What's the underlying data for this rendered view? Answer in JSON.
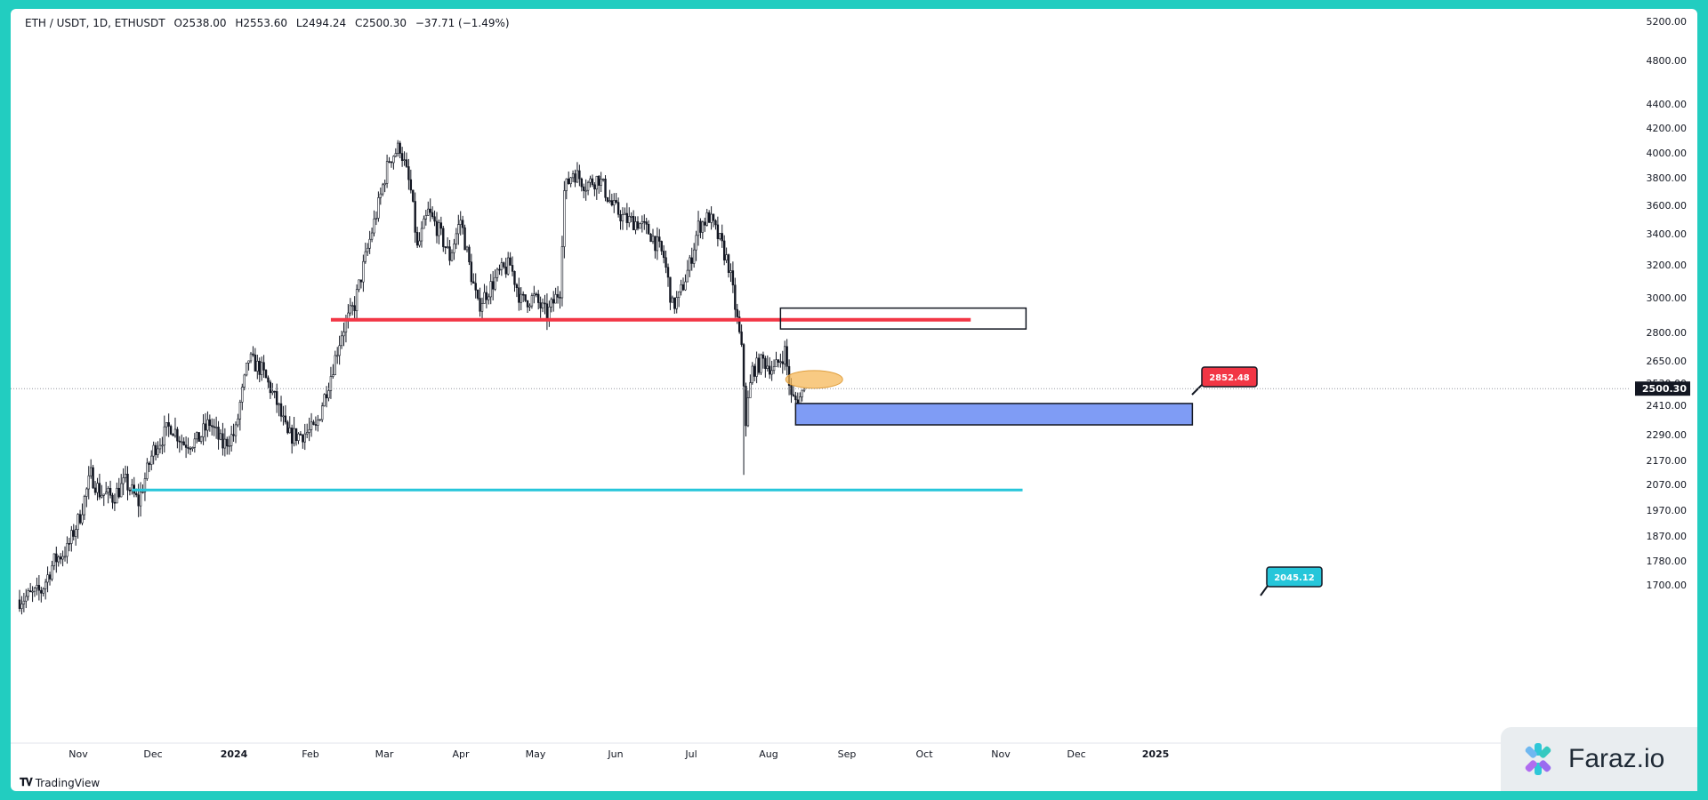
{
  "header": {
    "symbol": "ETH / USDT, 1D, ETHUSDT",
    "open": "O2538.00",
    "high": "H2553.60",
    "low": "L2494.24",
    "close": "C2500.30",
    "change": "−37.71 (−1.49%)"
  },
  "branding": {
    "tradingview": "TradingView",
    "watermark": "Faraz.io"
  },
  "chart_data": {
    "type": "candlestick",
    "x_labels": [
      "Nov",
      "Dec",
      "2024",
      "Feb",
      "Mar",
      "Apr",
      "May",
      "Jun",
      "Jul",
      "Aug",
      "Sep",
      "Oct",
      "Nov",
      "Dec",
      "2025"
    ],
    "y_ticks": [
      "5200.00",
      "4800.00",
      "4400.00",
      "4200.00",
      "4000.00",
      "3800.00",
      "3600.00",
      "3400.00",
      "3200.00",
      "3000.00",
      "2800.00",
      "2650.00",
      "2530.00",
      "2410.00",
      "2290.00",
      "2170.00",
      "2070.00",
      "1970.00",
      "1870.00",
      "1780.00",
      "1700.00"
    ],
    "last_price": "2500.30",
    "resistance_level": {
      "value": 2852.48,
      "label": "2852.48",
      "color": "#f23645"
    },
    "support_level": {
      "value": 2045.12,
      "label": "2045.12",
      "color": "#26c6da"
    },
    "zones": [
      {
        "name": "resistance-box",
        "top": 2920,
        "bottom": 2820,
        "fill": "none"
      },
      {
        "name": "demand-box",
        "top": 2420,
        "bottom": 2330,
        "fill": "#7f9cf5"
      }
    ],
    "highlight_ellipse": {
      "price": 2550,
      "color": "#f6b85a"
    },
    "anchors": [
      {
        "d": 0,
        "p": 1650
      },
      {
        "d": 10,
        "p": 1680
      },
      {
        "d": 16,
        "p": 1780
      },
      {
        "d": 22,
        "p": 1820
      },
      {
        "d": 28,
        "p": 1950
      },
      {
        "d": 33,
        "p": 2110
      },
      {
        "d": 37,
        "p": 2040
      },
      {
        "d": 43,
        "p": 2020
      },
      {
        "d": 49,
        "p": 2080
      },
      {
        "d": 55,
        "p": 2000
      },
      {
        "d": 62,
        "p": 2220
      },
      {
        "d": 70,
        "p": 2330
      },
      {
        "d": 76,
        "p": 2250
      },
      {
        "d": 82,
        "p": 2260
      },
      {
        "d": 88,
        "p": 2340
      },
      {
        "d": 94,
        "p": 2240
      },
      {
        "d": 100,
        "p": 2300
      },
      {
        "d": 106,
        "p": 2660
      },
      {
        "d": 112,
        "p": 2600
      },
      {
        "d": 118,
        "p": 2450
      },
      {
        "d": 124,
        "p": 2280
      },
      {
        "d": 130,
        "p": 2290
      },
      {
        "d": 137,
        "p": 2310
      },
      {
        "d": 143,
        "p": 2530
      },
      {
        "d": 149,
        "p": 2800
      },
      {
        "d": 155,
        "p": 2960
      },
      {
        "d": 161,
        "p": 3300
      },
      {
        "d": 166,
        "p": 3600
      },
      {
        "d": 171,
        "p": 3950
      },
      {
        "d": 176,
        "p": 4050
      },
      {
        "d": 181,
        "p": 3700
      },
      {
        "d": 184,
        "p": 3300
      },
      {
        "d": 189,
        "p": 3550
      },
      {
        "d": 194,
        "p": 3420
      },
      {
        "d": 199,
        "p": 3250
      },
      {
        "d": 204,
        "p": 3500
      },
      {
        "d": 208,
        "p": 3200
      },
      {
        "d": 212,
        "p": 2950
      },
      {
        "d": 217,
        "p": 3050
      },
      {
        "d": 222,
        "p": 3150
      },
      {
        "d": 227,
        "p": 3200
      },
      {
        "d": 232,
        "p": 2980
      },
      {
        "d": 238,
        "p": 3000
      },
      {
        "d": 244,
        "p": 2900
      },
      {
        "d": 250,
        "p": 3050
      },
      {
        "d": 252,
        "p": 3700
      },
      {
        "d": 256,
        "p": 3850
      },
      {
        "d": 262,
        "p": 3750
      },
      {
        "d": 268,
        "p": 3800
      },
      {
        "d": 274,
        "p": 3600
      },
      {
        "d": 280,
        "p": 3500
      },
      {
        "d": 286,
        "p": 3480
      },
      {
        "d": 292,
        "p": 3400
      },
      {
        "d": 298,
        "p": 3250
      },
      {
        "d": 302,
        "p": 2950
      },
      {
        "d": 305,
        "p": 3000
      },
      {
        "d": 310,
        "p": 3200
      },
      {
        "d": 314,
        "p": 3450
      },
      {
        "d": 319,
        "p": 3520
      },
      {
        "d": 324,
        "p": 3350
      },
      {
        "d": 328,
        "p": 3200
      },
      {
        "d": 331,
        "p": 2950
      },
      {
        "d": 334,
        "p": 2700
      },
      {
        "d": 336,
        "p": 2350
      },
      {
        "d": 339,
        "p": 2600
      },
      {
        "d": 344,
        "p": 2650
      },
      {
        "d": 349,
        "p": 2600
      },
      {
        "d": 354,
        "p": 2700
      },
      {
        "d": 357,
        "p": 2450
      },
      {
        "d": 360,
        "p": 2430
      },
      {
        "d": 363,
        "p": 2500
      }
    ]
  }
}
